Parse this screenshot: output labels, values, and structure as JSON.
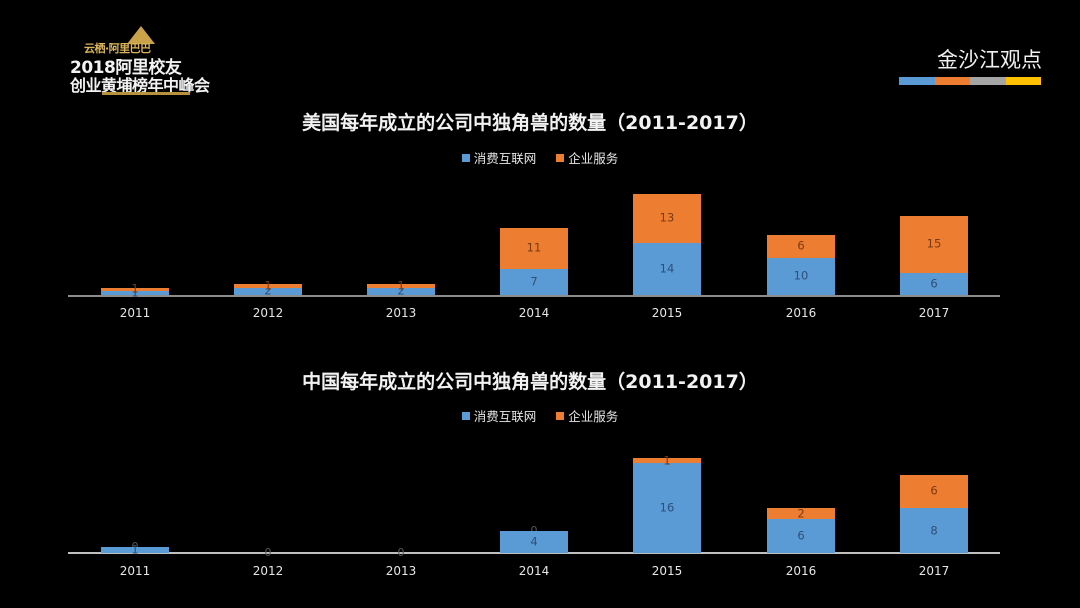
{
  "header": {
    "logo": {
      "tagline": "云栖·阿里巴巴",
      "line1": "2018阿里校友",
      "line2": "创业黄埔榜年中峰会"
    },
    "brand": "金沙江观点",
    "brand_bar_colors": [
      "#5b9bd5",
      "#ed7d31",
      "#a5a5a5",
      "#ffc000"
    ]
  },
  "legend": {
    "consumer": "消费互联网",
    "enterprise": "企业服务"
  },
  "colors": {
    "consumer": "#5b9bd5",
    "enterprise": "#ed7d31",
    "axis": "#8c8c8c",
    "background": "#000000"
  },
  "charts": {
    "us": {
      "title": "美国每年成立的公司中独角兽的数量（2011-2017）"
    },
    "cn": {
      "title": "中国每年成立的公司中独角兽的数量（2011-2017）"
    }
  },
  "chart_data": [
    {
      "type": "bar",
      "stacked": true,
      "title": "美国每年成立的公司中独角兽的数量（2011-2017）",
      "categories": [
        "2011",
        "2012",
        "2013",
        "2014",
        "2015",
        "2016",
        "2017"
      ],
      "series": [
        {
          "name": "消费互联网",
          "color": "#5b9bd5",
          "values": [
            1,
            2,
            2,
            7,
            14,
            10,
            6
          ]
        },
        {
          "name": "企业服务",
          "color": "#ed7d31",
          "values": [
            1,
            1,
            1,
            11,
            13,
            6,
            15
          ]
        }
      ],
      "xlabel": "",
      "ylabel": "",
      "ylim": [
        0,
        27
      ],
      "grid": false,
      "legend_position": "top",
      "data_labels": true
    },
    {
      "type": "bar",
      "stacked": true,
      "title": "中国每年成立的公司中独角兽的数量（2011-2017）",
      "categories": [
        "2011",
        "2012",
        "2013",
        "2014",
        "2015",
        "2016",
        "2017"
      ],
      "series": [
        {
          "name": "消费互联网",
          "color": "#5b9bd5",
          "values": [
            1,
            0,
            0,
            4,
            16,
            6,
            8
          ]
        },
        {
          "name": "企业服务",
          "color": "#ed7d31",
          "values": [
            0,
            0,
            0,
            0,
            1,
            2,
            6
          ]
        }
      ],
      "xlabel": "",
      "ylabel": "",
      "ylim": [
        0,
        17
      ],
      "grid": false,
      "legend_position": "top",
      "data_labels": true
    }
  ]
}
